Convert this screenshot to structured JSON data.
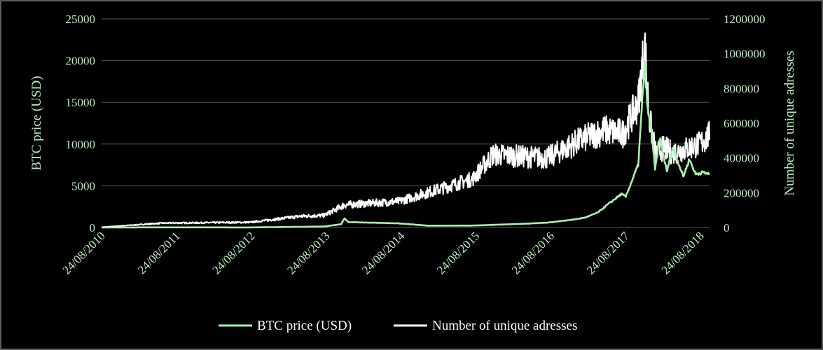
{
  "chart_data": {
    "type": "line",
    "x_ticks": [
      "24/08/2010",
      "24/08/2011",
      "24/08/2012",
      "24/08/2013",
      "24/08/2014",
      "24/08/2015",
      "24/08/2016",
      "24/08/2017",
      "24/08/2018"
    ],
    "y_left": {
      "label": "BTC price (USD)",
      "range": [
        0,
        25000
      ],
      "ticks": [
        "0",
        "5000",
        "10000",
        "15000",
        "20000",
        "25000"
      ]
    },
    "y_right": {
      "label": "Number of unique adresses",
      "range": [
        0,
        1200000
      ],
      "ticks": [
        "0",
        "200000",
        "400000",
        "600000",
        "800000",
        "1000000",
        "1200000"
      ]
    },
    "x_range": [
      "2010-08-24",
      "2018-11-01"
    ],
    "grid": "horizontal",
    "legend_position": "bottom",
    "series": [
      {
        "name": "BTC price (USD)",
        "axis": "left",
        "color": "#a8f0b0",
        "points": [
          [
            "2010-08-24",
            0
          ],
          [
            "2011-06-01",
            20
          ],
          [
            "2012-08-24",
            10
          ],
          [
            "2013-08-24",
            120
          ],
          [
            "2013-11-15",
            400
          ],
          [
            "2013-12-01",
            1100
          ],
          [
            "2013-12-20",
            650
          ],
          [
            "2014-03-01",
            600
          ],
          [
            "2014-08-24",
            500
          ],
          [
            "2015-01-15",
            220
          ],
          [
            "2015-08-24",
            230
          ],
          [
            "2016-05-01",
            450
          ],
          [
            "2016-08-24",
            580
          ],
          [
            "2017-01-01",
            950
          ],
          [
            "2017-03-01",
            1200
          ],
          [
            "2017-05-01",
            1800
          ],
          [
            "2017-06-15",
            2700
          ],
          [
            "2017-08-24",
            4000
          ],
          [
            "2017-09-15",
            3700
          ],
          [
            "2017-10-20",
            5900
          ],
          [
            "2017-11-15",
            7500
          ],
          [
            "2017-12-17",
            19500
          ],
          [
            "2018-01-01",
            14000
          ],
          [
            "2018-01-20",
            11500
          ],
          [
            "2018-02-06",
            6900
          ],
          [
            "2018-03-01",
            10800
          ],
          [
            "2018-04-05",
            6700
          ],
          [
            "2018-05-05",
            9600
          ],
          [
            "2018-06-25",
            6100
          ],
          [
            "2018-07-25",
            8200
          ],
          [
            "2018-08-24",
            6400
          ],
          [
            "2018-10-01",
            6600
          ],
          [
            "2018-11-01",
            6400
          ]
        ]
      },
      {
        "name": "Number of unique adresses",
        "axis": "right",
        "color": "#ffffff",
        "points": [
          [
            "2010-08-24",
            2000
          ],
          [
            "2011-06-15",
            25000
          ],
          [
            "2012-08-24",
            30000
          ],
          [
            "2013-05-01",
            65000
          ],
          [
            "2013-08-24",
            70000
          ],
          [
            "2013-12-01",
            130000
          ],
          [
            "2014-08-24",
            150000
          ],
          [
            "2015-08-24",
            280000
          ],
          [
            "2015-12-01",
            420000
          ],
          [
            "2016-08-24",
            400000
          ],
          [
            "2017-02-01",
            500000
          ],
          [
            "2017-06-01",
            560000
          ],
          [
            "2017-09-01",
            540000
          ],
          [
            "2017-11-15",
            720000
          ],
          [
            "2017-12-17",
            1050000
          ],
          [
            "2018-01-10",
            620000
          ],
          [
            "2018-02-10",
            420000
          ],
          [
            "2018-03-20",
            460000
          ],
          [
            "2018-05-01",
            430000
          ],
          [
            "2018-07-01",
            450000
          ],
          [
            "2018-09-15",
            480000
          ],
          [
            "2018-11-01",
            530000
          ]
        ]
      }
    ]
  }
}
